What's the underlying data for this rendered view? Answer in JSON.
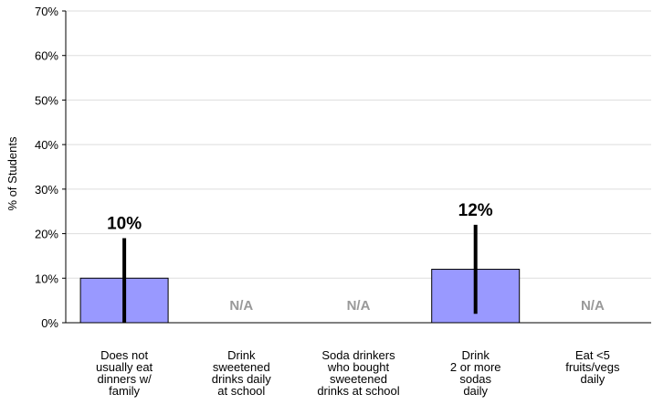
{
  "chart_data": {
    "type": "bar",
    "title": "",
    "xlabel": "",
    "ylabel": "% of Students",
    "ylim": [
      0,
      70
    ],
    "yticks": [
      0,
      10,
      20,
      30,
      40,
      50,
      60,
      70
    ],
    "ytick_labels": [
      "0%",
      "10%",
      "20%",
      "30%",
      "40%",
      "50%",
      "60%",
      "70%"
    ],
    "grid": true,
    "legend": "none",
    "categories": [
      [
        "Does not",
        "usually eat",
        "dinners w/",
        "family"
      ],
      [
        "Drink",
        "sweetened",
        "drinks daily",
        "at school"
      ],
      [
        "Soda drinkers",
        "who bought",
        "sweetened",
        "drinks at school"
      ],
      [
        "Drink",
        "2 or more",
        "sodas",
        "daily"
      ],
      [
        "Eat <5",
        "fruits/vegs",
        "daily"
      ]
    ],
    "series": [
      {
        "values": [
          10,
          null,
          null,
          12,
          null
        ],
        "error_low": [
          0,
          null,
          null,
          2,
          null
        ],
        "error_high": [
          19,
          null,
          null,
          22,
          null
        ],
        "labels": [
          "10%",
          "N/A",
          "N/A",
          "12%",
          "N/A"
        ]
      }
    ],
    "colors": {
      "bar_fill": "#9999ff",
      "bar_stroke": "#000000",
      "error_bar": "#000000",
      "na_text": "#999999",
      "value_text": "#000000",
      "grid": "#dddddd",
      "axis": "#000000"
    }
  }
}
